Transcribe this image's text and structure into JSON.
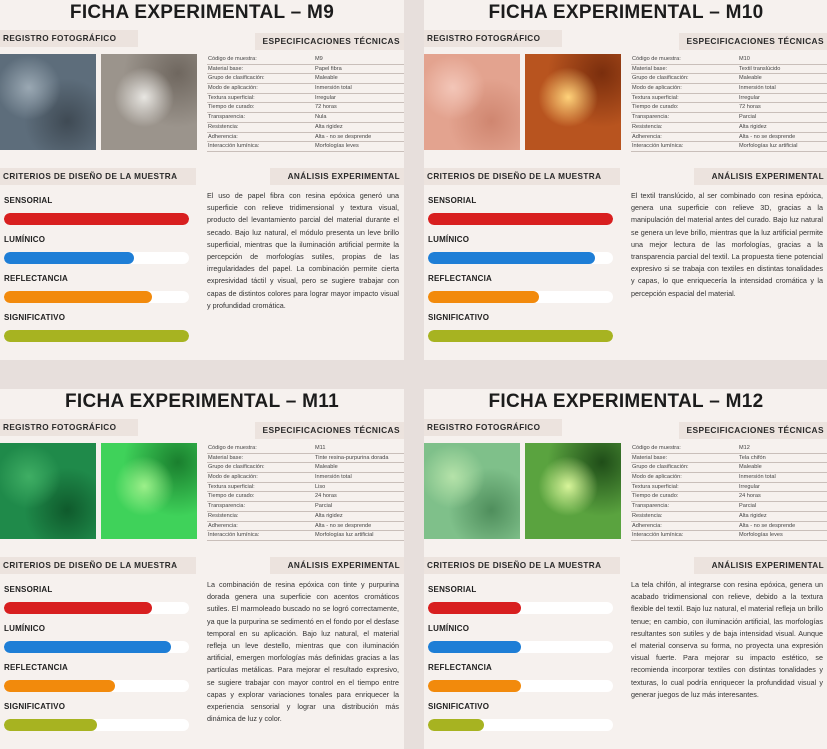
{
  "cards": [
    {
      "title": "FICHA EXPERIMENTAL  –  M9",
      "registro_label": "REGISTRO FOTOGRÁFICO",
      "spec_label": "ESPECIFICACIONES TÉCNICAS",
      "criterios_label": "CRITERIOS DE DISEÑO DE LA MUESTRA",
      "analisis_label": "ANÁLISIS EXPERIMENTAL",
      "specs": [
        {
          "k": "Código de muestra:",
          "v": "M9"
        },
        {
          "k": "Material base:",
          "v": "Papel fibra"
        },
        {
          "k": "Grupo de clasificación:",
          "v": "Maleable"
        },
        {
          "k": "Modo de aplicación:",
          "v": "Inmersión total"
        },
        {
          "k": "Textura superficial:",
          "v": "Irregular"
        },
        {
          "k": "Tiempo de curado:",
          "v": "72 horas"
        },
        {
          "k": "Transparencia:",
          "v": "Nula"
        },
        {
          "k": "Resistencia:",
          "v": "Alta rigidez"
        },
        {
          "k": "Adherencia:",
          "v": "Alta - no se desprende"
        },
        {
          "k": "Interacción lumínica:",
          "v": "Morfologías leves"
        }
      ],
      "criteria": [
        {
          "label": "SENSORIAL",
          "value": 100,
          "color": "#d81f1f"
        },
        {
          "label": "LUMÍNICO",
          "value": 70,
          "color": "#1e7ed6"
        },
        {
          "label": "REFLECTANCIA",
          "value": 80,
          "color": "#f28a0c"
        },
        {
          "label": "SIGNIFICATIVO",
          "value": 100,
          "color": "#a7b321"
        }
      ],
      "analysis": "El uso de papel fibra con resina epóxica generó una superficie con relieve tridimensional y textura visual, producto del levantamiento parcial del material durante el secado. Bajo luz natural, el módulo presenta un leve brillo superficial, mientras que la iluminación artificial permite la percepción de morfologías sutiles, propias de las irregularidades del papel. La combinación permite cierta expresividad táctil y visual, pero se sugiere trabajar con capas de distintos colores para lograr mayor impacto visual y profundidad cromática.",
      "photo1_colors": [
        "#5d6d7b",
        "#9aa8b3",
        "#3f4a54"
      ],
      "photo2_colors": [
        "#9b948c",
        "#e8e6e2",
        "#6f675f"
      ]
    },
    {
      "title": "FICHA EXPERIMENTAL  –  M10",
      "registro_label": "REGISTRO FOTOGRÁFICO",
      "spec_label": "ESPECIFICACIONES TÉCNICAS",
      "criterios_label": "CRITERIOS DE DISEÑO DE LA MUESTRA",
      "analisis_label": "ANÁLISIS EXPERIMENTAL",
      "specs": [
        {
          "k": "Código de muestra:",
          "v": "M10"
        },
        {
          "k": "Material base:",
          "v": "Textil translúcido"
        },
        {
          "k": "Grupo de clasificación:",
          "v": "Maleable"
        },
        {
          "k": "Modo de aplicación:",
          "v": "Inmersión total"
        },
        {
          "k": "Textura superficial:",
          "v": "Irregular"
        },
        {
          "k": "Tiempo de curado:",
          "v": "72 horas"
        },
        {
          "k": "Transparencia:",
          "v": "Parcial"
        },
        {
          "k": "Resistencia:",
          "v": "Alta rigidez"
        },
        {
          "k": "Adherencia:",
          "v": "Alta - no se desprende"
        },
        {
          "k": "Interacción lumínica:",
          "v": "Morfologías luz artificial"
        }
      ],
      "criteria": [
        {
          "label": "SENSORIAL",
          "value": 100,
          "color": "#d81f1f"
        },
        {
          "label": "LUMÍNICO",
          "value": 90,
          "color": "#1e7ed6"
        },
        {
          "label": "REFLECTANCIA",
          "value": 60,
          "color": "#f28a0c"
        },
        {
          "label": "SIGNIFICATIVO",
          "value": 100,
          "color": "#a7b321"
        }
      ],
      "analysis": "El textil translúcido, al ser combinado con resina epóxica, genera una superficie con relieve 3D, gracias a la manipulación del material antes del curado. Bajo luz natural se genera un leve brillo, mientras que la luz artificial permite una mejor lectura de las morfologías, gracias a la transparencia parcial del textil. La propuesta tiene potencial expresivo si se trabaja con textiles en distintas tonalidades y capas, lo que enriquecería la intensidad cromática y la percepción espacial del material.",
      "photo1_colors": [
        "#e3a38f",
        "#f3c6b8",
        "#cf8670"
      ],
      "photo2_colors": [
        "#b8541f",
        "#ffd27a",
        "#7a2e0d"
      ]
    },
    {
      "title": "FICHA EXPERIMENTAL  –  M11",
      "registro_label": "REGISTRO FOTOGRÁFICO",
      "spec_label": "ESPECIFICACIONES TÉCNICAS",
      "criterios_label": "CRITERIOS DE DISEÑO DE LA MUESTRA",
      "analisis_label": "ANÁLISIS EXPERIMENTAL",
      "specs": [
        {
          "k": "Código de muestra:",
          "v": "M11"
        },
        {
          "k": "Material base:",
          "v": "Tinte resina-purpurina dorada"
        },
        {
          "k": "Grupo de clasificación:",
          "v": "Maleable"
        },
        {
          "k": "Modo de aplicación:",
          "v": "Inmersión total"
        },
        {
          "k": "Textura superficial:",
          "v": "Liso"
        },
        {
          "k": "Tiempo de curado:",
          "v": "24 horas"
        },
        {
          "k": "Transparencia:",
          "v": "Parcial"
        },
        {
          "k": "Resistencia:",
          "v": "Alta rigidez"
        },
        {
          "k": "Adherencia:",
          "v": "Alta - no se desprende"
        },
        {
          "k": "Interacción lumínica:",
          "v": "Morfologías luz artificial"
        }
      ],
      "criteria": [
        {
          "label": "SENSORIAL",
          "value": 80,
          "color": "#d81f1f"
        },
        {
          "label": "LUMÍNICO",
          "value": 90,
          "color": "#1e7ed6"
        },
        {
          "label": "REFLECTANCIA",
          "value": 60,
          "color": "#f28a0c"
        },
        {
          "label": "SIGNIFICATIVO",
          "value": 50,
          "color": "#a7b321"
        }
      ],
      "analysis": "La combinación de resina epóxica con tinte y purpurina dorada genera una superficie con acentos cromáticos sutiles. El marmoleado buscado no se logró correctamente, ya que la purpurina se sedimentó en el fondo por el desfase temporal en su aplicación. Bajo luz natural, el material refleja un leve destello, mientras que con iluminación artificial, emergen morfologías más definidas gracias a las partículas metálicas. Para mejorar el resultado expresivo, se sugiere trabajar con mayor control en el tiempo entre capas y explorar variaciones tonales para enriquecer la experiencia sensorial y lograr una distribución más dinámica de luz y color.",
      "photo1_colors": [
        "#1f8a4a",
        "#3fae64",
        "#0f5a2c"
      ],
      "photo2_colors": [
        "#3fd25a",
        "#9cf08a",
        "#1a7f2e"
      ]
    },
    {
      "title": "FICHA EXPERIMENTAL  –  M12",
      "registro_label": "REGISTRO FOTOGRÁFICO",
      "spec_label": "ESPECIFICACIONES TÉCNICAS",
      "criterios_label": "CRITERIOS DE DISEÑO DE LA MUESTRA",
      "analisis_label": "ANÁLISIS EXPERIMENTAL",
      "specs": [
        {
          "k": "Código de muestra:",
          "v": "M12"
        },
        {
          "k": "Material base:",
          "v": "Tela chifón"
        },
        {
          "k": "Grupo de clasificación:",
          "v": "Maleable"
        },
        {
          "k": "Modo de aplicación:",
          "v": "Inmersión total"
        },
        {
          "k": "Textura superficial:",
          "v": "Irregular"
        },
        {
          "k": "Tiempo de curado:",
          "v": "24 horas"
        },
        {
          "k": "Transparencia:",
          "v": "Parcial"
        },
        {
          "k": "Resistencia:",
          "v": "Alta rigidez"
        },
        {
          "k": "Adherencia:",
          "v": "Alta - no se desprende"
        },
        {
          "k": "Interacción lumínica:",
          "v": "Morfologías leves"
        }
      ],
      "criteria": [
        {
          "label": "SENSORIAL",
          "value": 50,
          "color": "#d81f1f"
        },
        {
          "label": "LUMÍNICO",
          "value": 50,
          "color": "#1e7ed6"
        },
        {
          "label": "REFLECTANCIA",
          "value": 50,
          "color": "#f28a0c"
        },
        {
          "label": "SIGNIFICATIVO",
          "value": 30,
          "color": "#a7b321"
        }
      ],
      "analysis": "La tela chifón, al integrarse con resina epóxica, genera un acabado tridimensional con relieve, debido a la textura flexible del textil. Bajo luz natural, el material refleja un brillo tenue; en cambio, con iluminación artificial, las morfologías resultantes son sutiles y de baja intensidad visual. Aunque el material conserva su forma, no proyecta una expresión visual fuerte. Para mejorar su impacto estético, se recomienda incorporar textiles con distintas tonalidades y texturas, lo cual podría enriquecer la profundidad visual y generar juegos de luz más interesantes.",
      "photo1_colors": [
        "#7fc08a",
        "#b5e2a9",
        "#4f8e5c"
      ],
      "photo2_colors": [
        "#5aa33f",
        "#d8f59a",
        "#1f4d18"
      ]
    }
  ]
}
